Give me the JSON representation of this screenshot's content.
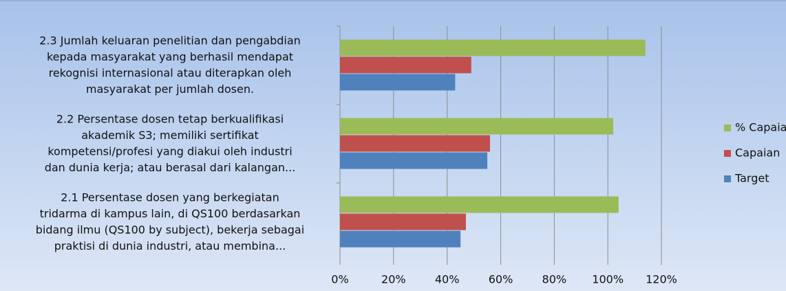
{
  "chart_data": {
    "type": "bar",
    "orientation": "horizontal",
    "categories": [
      [
        "2.1  Persentase dosen  yang  berkegiatan",
        "tridarma di  kampus lain,  di  QS100 berdasarkan",
        "bidang ilmu  (QS100 by subject), bekerja sebagai",
        "praktisi di dunia industri, atau membina..."
      ],
      [
        "2.2  Persentase dosen tetap berkualifikasi",
        "akademik S3;  memiliki sertifikat",
        "kompetensi/profesi  yang diakui oleh industri",
        "dan dunia kerja; atau berasal dari kalangan..."
      ],
      [
        "2.3  Jumlah keluaran penelitian dan pengabdian",
        "kepada masyarakat yang berhasil mendapat",
        "rekognisi internasional atau  diterapkan oleh",
        "masyarakat per jumlah dosen."
      ]
    ],
    "series": [
      {
        "name": "% Capaian",
        "color": "#9bbb59",
        "values": [
          104,
          102,
          114
        ]
      },
      {
        "name": "Capaian",
        "color": "#c0504d",
        "values": [
          47,
          56,
          49
        ]
      },
      {
        "name": "Target",
        "color": "#4f81bd",
        "values": [
          45,
          55,
          43
        ]
      }
    ],
    "xlim": [
      0,
      120
    ],
    "xticks": [
      {
        "value": 0,
        "label": "0%"
      },
      {
        "value": 20,
        "label": "20%"
      },
      {
        "value": 40,
        "label": "40%"
      },
      {
        "value": 60,
        "label": "60%"
      },
      {
        "value": 80,
        "label": "80%"
      },
      {
        "value": 100,
        "label": "100%"
      },
      {
        "value": 120,
        "label": "120%"
      }
    ],
    "grid": true,
    "legend": "right"
  }
}
